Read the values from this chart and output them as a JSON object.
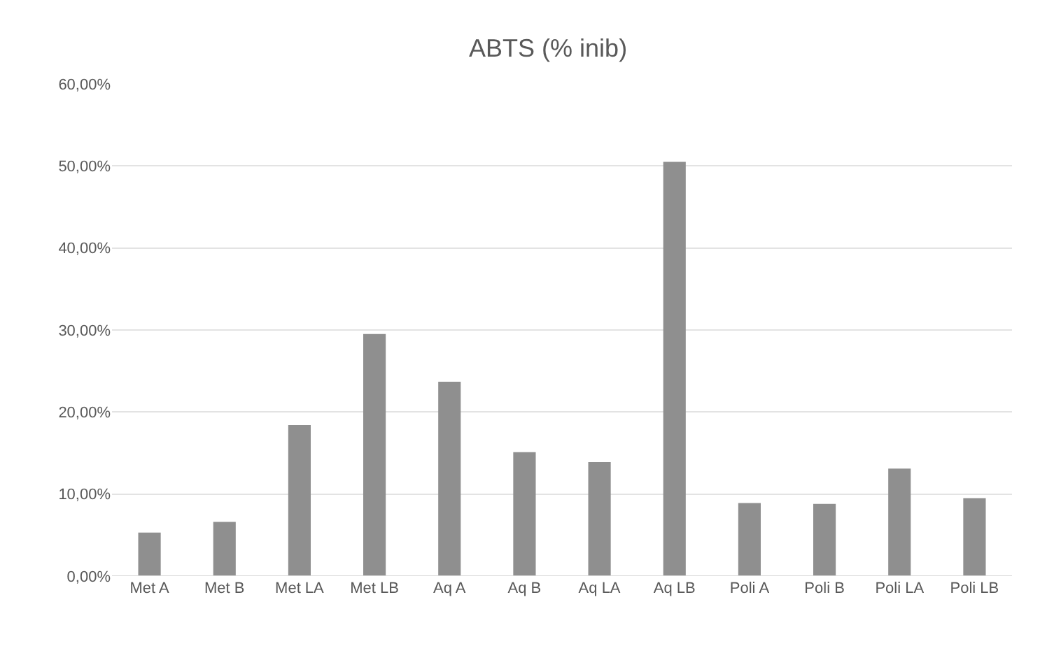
{
  "chart_data": {
    "type": "bar",
    "title": "ABTS (% inib)",
    "categories": [
      "Met A",
      "Met B",
      "Met LA",
      "Met LB",
      "Aq A",
      "Aq B",
      "Aq LA",
      "Aq LB",
      "Poli A",
      "Poli B",
      "Poli LA",
      "Poli LB"
    ],
    "values": [
      5.3,
      6.6,
      18.4,
      29.5,
      23.7,
      15.1,
      13.9,
      50.5,
      8.9,
      8.8,
      13.1,
      9.5
    ],
    "color": "#8f8f8f",
    "ylim": [
      0,
      60
    ],
    "yticks": [
      {
        "value": 0,
        "label": "0,00%"
      },
      {
        "value": 10,
        "label": "10,00%"
      },
      {
        "value": 20,
        "label": "20,00%"
      },
      {
        "value": 30,
        "label": "30,00%"
      },
      {
        "value": 40,
        "label": "40,00%"
      },
      {
        "value": 50,
        "label": "50,00%"
      },
      {
        "value": 60,
        "label": "60,00%"
      }
    ],
    "grid": "y"
  }
}
